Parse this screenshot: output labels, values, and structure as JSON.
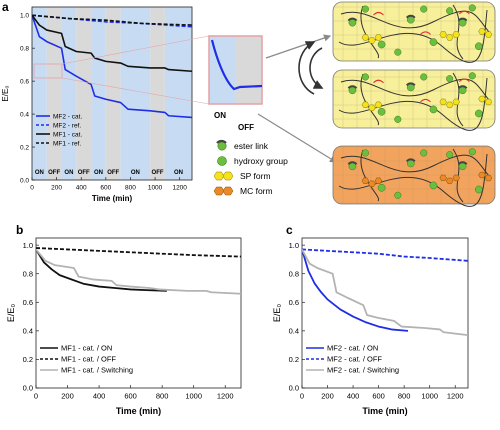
{
  "panels": {
    "a": "a",
    "b": "b",
    "c": "c"
  },
  "colors": {
    "mf1": "#111111",
    "mf2": "#1f2ee6",
    "switching": "#b3b3b3",
    "on_band": "#c7dcf3",
    "off_band": "#d9d9d9",
    "zoom_border": "#e7a0a6",
    "network_light": "#f7ef9a",
    "network_orange": "#f2a45f",
    "hydroxy": "#6bbf3f",
    "sp_form": "#f4e21d",
    "mc_form": "#e98a27",
    "arrow_red": "#e0322b"
  },
  "inset": {
    "on": "ON",
    "off": "OFF"
  },
  "schematic_legend": [
    {
      "icon": "ester-link-icon",
      "label": "ester link"
    },
    {
      "icon": "hydroxy-group-icon",
      "label": "hydroxy group"
    },
    {
      "icon": "sp-form-icon",
      "label": "SP form"
    },
    {
      "icon": "mc-form-icon",
      "label": "MC form"
    }
  ],
  "chart_data": [
    {
      "id": "a",
      "type": "line",
      "xlabel": "Time (min)",
      "ylabel": "E/E₀",
      "xlim": [
        0,
        1300
      ],
      "ylim": [
        0.0,
        1.05
      ],
      "xticks": [
        0,
        200,
        400,
        600,
        800,
        1000,
        1200
      ],
      "yticks": [
        0.0,
        0.2,
        0.4,
        0.6,
        0.8,
        1.0
      ],
      "ytick_labels": [
        "0.0",
        "0.2",
        "0.4",
        "0.6",
        "0.8",
        "1.0"
      ],
      "phases": [
        {
          "label": "ON",
          "from": 0,
          "to": 120
        },
        {
          "label": "OFF",
          "from": 120,
          "to": 240
        },
        {
          "label": "ON",
          "from": 240,
          "to": 360
        },
        {
          "label": "OFF",
          "from": 360,
          "to": 480
        },
        {
          "label": "ON",
          "from": 480,
          "to": 600
        },
        {
          "label": "OFF",
          "from": 600,
          "to": 720
        },
        {
          "label": "ON",
          "from": 720,
          "to": 960
        },
        {
          "label": "OFF",
          "from": 960,
          "to": 1080
        },
        {
          "label": "ON",
          "from": 1080,
          "to": 1300
        }
      ],
      "phase_labels": [
        {
          "text": "ON",
          "x": 60
        },
        {
          "text": "OFF",
          "x": 180
        },
        {
          "text": "ON",
          "x": 300
        },
        {
          "text": "OFF",
          "x": 420
        },
        {
          "text": "ON",
          "x": 540
        },
        {
          "text": "OFF",
          "x": 660
        },
        {
          "text": "ON",
          "x": 840
        },
        {
          "text": "OFF",
          "x": 1020
        },
        {
          "text": "ON",
          "x": 1190
        }
      ],
      "legend": {
        "position": "bottom-left"
      },
      "series": [
        {
          "name": "MF2 - cat.",
          "color": "mf2",
          "dash": false,
          "x": [
            0,
            60,
            120,
            240,
            270,
            360,
            480,
            510,
            600,
            720,
            780,
            960,
            1080,
            1110,
            1300
          ],
          "y": [
            1.0,
            0.87,
            0.84,
            0.8,
            0.67,
            0.63,
            0.58,
            0.51,
            0.49,
            0.47,
            0.43,
            0.42,
            0.41,
            0.39,
            0.38
          ]
        },
        {
          "name": "MF2 - ref.",
          "color": "mf2",
          "dash": true,
          "x": [
            0,
            300,
            600,
            900,
            1300
          ],
          "y": [
            1.0,
            0.98,
            0.96,
            0.95,
            0.93
          ]
        },
        {
          "name": "MF1 - cat.",
          "color": "mf1",
          "dash": false,
          "x": [
            0,
            60,
            120,
            240,
            270,
            360,
            480,
            510,
            600,
            720,
            780,
            960,
            1080,
            1110,
            1300
          ],
          "y": [
            1.0,
            0.94,
            0.91,
            0.89,
            0.81,
            0.78,
            0.77,
            0.74,
            0.72,
            0.71,
            0.69,
            0.68,
            0.68,
            0.67,
            0.66
          ]
        },
        {
          "name": "MF1 - ref.",
          "color": "mf1",
          "dash": true,
          "x": [
            0,
            300,
            600,
            900,
            1300
          ],
          "y": [
            1.0,
            0.98,
            0.97,
            0.95,
            0.94
          ]
        }
      ]
    },
    {
      "id": "b",
      "type": "line",
      "xlabel": "Time (min)",
      "ylabel": "E/E₀",
      "xlim": [
        0,
        1300
      ],
      "ylim": [
        0.0,
        1.05
      ],
      "xticks": [
        0,
        200,
        400,
        600,
        800,
        1000,
        1200
      ],
      "yticks": [
        0.0,
        0.2,
        0.4,
        0.6,
        0.8,
        1.0
      ],
      "ytick_labels": [
        "0.0",
        "0.2",
        "0.4",
        "0.6",
        "0.8",
        "1.0"
      ],
      "legend": {
        "position": "bottom-left"
      },
      "series": [
        {
          "name": "MF1 - cat. / ON",
          "color": "mf1",
          "dash": false,
          "x": [
            0,
            50,
            100,
            150,
            200,
            300,
            400,
            500,
            600,
            700,
            830
          ],
          "y": [
            0.97,
            0.88,
            0.83,
            0.79,
            0.77,
            0.73,
            0.71,
            0.7,
            0.69,
            0.685,
            0.68
          ]
        },
        {
          "name": "MF1 - cat. / OFF",
          "color": "mf1",
          "dash": true,
          "x": [
            0,
            200,
            400,
            600,
            800,
            1000,
            1300
          ],
          "y": [
            0.98,
            0.97,
            0.96,
            0.95,
            0.94,
            0.93,
            0.92
          ]
        },
        {
          "name": "MF1 - cat. / Switching",
          "color": "switching",
          "dash": false,
          "x": [
            0,
            60,
            120,
            240,
            270,
            360,
            480,
            510,
            600,
            720,
            780,
            960,
            1080,
            1110,
            1300
          ],
          "y": [
            0.97,
            0.89,
            0.86,
            0.84,
            0.78,
            0.76,
            0.75,
            0.72,
            0.71,
            0.7,
            0.69,
            0.68,
            0.68,
            0.67,
            0.66
          ]
        }
      ]
    },
    {
      "id": "c",
      "type": "line",
      "xlabel": "Time (min)",
      "ylabel": "E/E₀",
      "xlim": [
        0,
        1300
      ],
      "ylim": [
        0.0,
        1.05
      ],
      "xticks": [
        0,
        200,
        400,
        600,
        800,
        1000,
        1200
      ],
      "yticks": [
        0.0,
        0.2,
        0.4,
        0.6,
        0.8,
        1.0
      ],
      "ytick_labels": [
        "0.0",
        "0.2",
        "0.4",
        "0.6",
        "0.8",
        "1.0"
      ],
      "legend": {
        "position": "bottom-left"
      },
      "series": [
        {
          "name": "MF2 - cat. / ON",
          "color": "mf2",
          "dash": false,
          "x": [
            0,
            50,
            100,
            150,
            200,
            300,
            400,
            500,
            600,
            700,
            830
          ],
          "y": [
            0.97,
            0.82,
            0.73,
            0.67,
            0.62,
            0.55,
            0.5,
            0.46,
            0.43,
            0.41,
            0.4
          ]
        },
        {
          "name": "MF2 - cat. / OFF",
          "color": "mf2",
          "dash": true,
          "x": [
            0,
            200,
            400,
            600,
            800,
            1000,
            1300
          ],
          "y": [
            0.97,
            0.96,
            0.95,
            0.94,
            0.92,
            0.91,
            0.89
          ]
        },
        {
          "name": "MF2 - cat. / Switching",
          "color": "switching",
          "dash": false,
          "x": [
            0,
            60,
            120,
            240,
            270,
            360,
            480,
            510,
            600,
            720,
            780,
            960,
            1080,
            1110,
            1300
          ],
          "y": [
            0.97,
            0.87,
            0.84,
            0.8,
            0.67,
            0.63,
            0.58,
            0.51,
            0.49,
            0.47,
            0.43,
            0.42,
            0.41,
            0.39,
            0.37
          ]
        }
      ]
    }
  ]
}
